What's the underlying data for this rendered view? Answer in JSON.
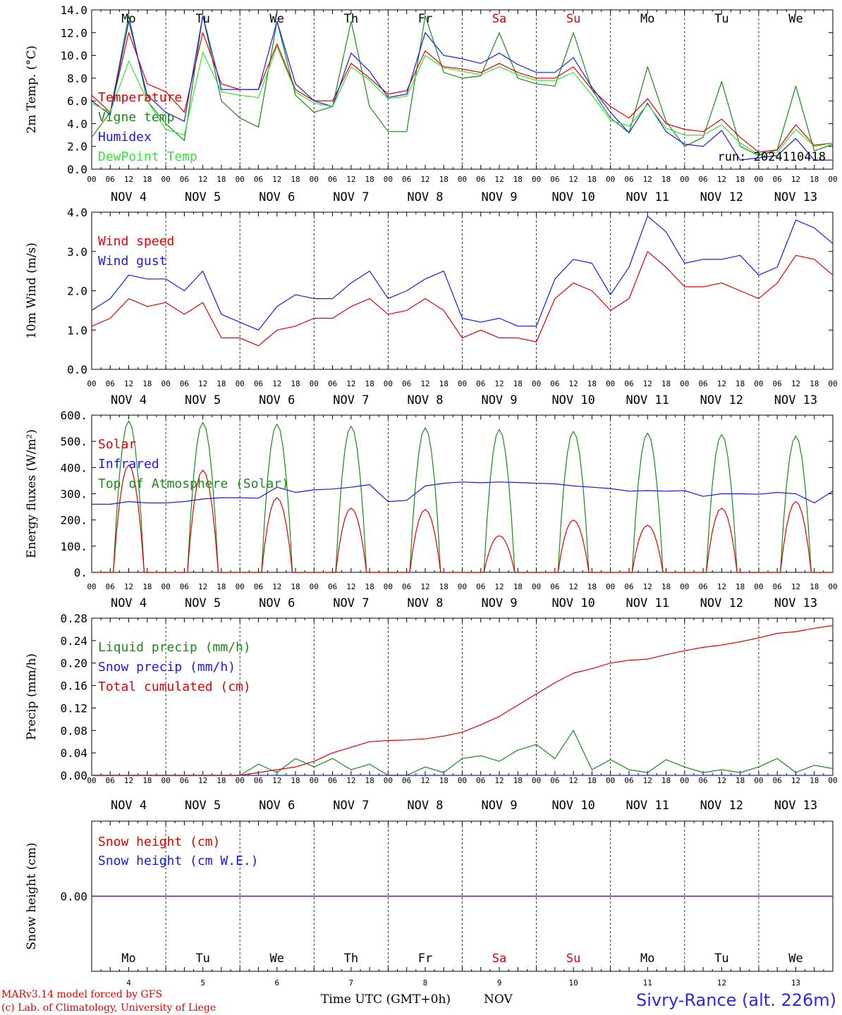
{
  "run_label": "run: 2024110418",
  "station": "Sivry-Rance (alt. 226m)",
  "footnote_line1": "MARv3.14 model forced by GFS",
  "footnote_line2": "(c) Lab. of Climatology, University of Liege",
  "x_axis_title": "Time UTC (GMT+0h)",
  "x_axis_unit": "NOV",
  "hour_labels": [
    "00",
    "06",
    "12",
    "18"
  ],
  "days": [
    {
      "name": "Mo",
      "month": "NOV",
      "date": "4",
      "weekend": false
    },
    {
      "name": "Tu",
      "month": "NOV",
      "date": "5",
      "weekend": false
    },
    {
      "name": "We",
      "month": "NOV",
      "date": "6",
      "weekend": false
    },
    {
      "name": "Th",
      "month": "NOV",
      "date": "7",
      "weekend": false
    },
    {
      "name": "Fr",
      "month": "NOV",
      "date": "8",
      "weekend": false
    },
    {
      "name": "Sa",
      "month": "NOV",
      "date": "9",
      "weekend": true
    },
    {
      "name": "Su",
      "month": "NOV",
      "date": "10",
      "weekend": true
    },
    {
      "name": "Mo",
      "month": "NOV",
      "date": "11",
      "weekend": false
    },
    {
      "name": "Tu",
      "month": "NOV",
      "date": "12",
      "weekend": false
    },
    {
      "name": "We",
      "month": "NOV",
      "date": "13",
      "weekend": false
    }
  ],
  "colors": {
    "red": "#e00000",
    "blue": "#1a1ae6",
    "green": "#1a8a1a",
    "lightgreen": "#33e633",
    "purple": "#7a2aa0",
    "weekend_day": "#e00000"
  },
  "chart_data": [
    {
      "type": "line",
      "panel": "temperature",
      "ylabel": "2m Temp. (°C)",
      "ylim": [
        0,
        14
      ],
      "yticks": [
        "0.0",
        "2.0",
        "4.0",
        "6.0",
        "8.0",
        "10.0",
        "12.0",
        "14.0"
      ],
      "ytick_values": [
        0,
        2,
        4,
        6,
        8,
        10,
        12,
        14
      ],
      "show_day_names_top": true,
      "show_run_label": true,
      "zero_line_dashed": true,
      "x_unit": "hours since NOV 4 00 UTC",
      "series": [
        {
          "name": "Vigne temp",
          "color": "green",
          "x": [
            0,
            6,
            12,
            18,
            24,
            30,
            36,
            42,
            48,
            54,
            60,
            66,
            72,
            78,
            84,
            90,
            96,
            102,
            108,
            114,
            120,
            126,
            132,
            138,
            144,
            150,
            156,
            162,
            168,
            174,
            180,
            186,
            192,
            198,
            204,
            210,
            216,
            222,
            228,
            234,
            240
          ],
          "y": [
            2.8,
            5,
            13.5,
            6,
            4,
            2.5,
            13.5,
            6,
            4.5,
            3.7,
            13,
            6.5,
            5,
            5.5,
            13,
            5.5,
            3.3,
            3.3,
            13.5,
            8.5,
            8,
            8.2,
            12,
            8,
            7.5,
            7.3,
            12,
            7,
            4.5,
            3.2,
            9,
            4.2,
            2,
            2.8,
            7.7,
            2,
            1.2,
            1.7,
            7.3,
            1.6,
            2.2
          ]
        },
        {
          "name": "Temperature",
          "color": "red",
          "x": [
            0,
            6,
            12,
            18,
            24,
            30,
            36,
            42,
            48,
            54,
            60,
            66,
            72,
            78,
            84,
            90,
            96,
            102,
            108,
            114,
            120,
            126,
            132,
            138,
            144,
            150,
            156,
            162,
            168,
            174,
            180,
            186,
            192,
            198,
            204,
            210,
            216,
            222,
            228,
            234,
            240
          ],
          "y": [
            6.5,
            5,
            12,
            7.5,
            6.8,
            5,
            12,
            7.5,
            7,
            7,
            11,
            7,
            6,
            6,
            9.3,
            8,
            6.6,
            6.9,
            10.4,
            9,
            8.8,
            8.5,
            9.3,
            8.5,
            8,
            8,
            9,
            7,
            5.5,
            4.5,
            6.2,
            4,
            3.5,
            3.3,
            4.4,
            2.8,
            1.5,
            1.7,
            3.9,
            2.1,
            2.3
          ]
        },
        {
          "name": "Humidex",
          "color": "blue",
          "x": [
            0,
            6,
            12,
            18,
            24,
            30,
            36,
            42,
            48,
            54,
            60,
            66,
            72,
            78,
            84,
            90,
            96,
            102,
            108,
            114,
            120,
            126,
            132,
            138,
            144,
            150,
            156,
            162,
            168,
            174,
            180,
            186,
            192,
            198,
            204,
            210,
            216,
            222,
            228,
            234,
            240
          ],
          "y": [
            6,
            4.8,
            13,
            6.5,
            5,
            4.2,
            13.5,
            7,
            7,
            7,
            13,
            7.5,
            6,
            5.5,
            10.2,
            8.6,
            6.3,
            6.6,
            12,
            10,
            9.7,
            9.3,
            10.2,
            9.2,
            8.5,
            8.5,
            9.8,
            7.2,
            5,
            3.2,
            5.8,
            3.3,
            2.2,
            2,
            3.4,
            0.8,
            1,
            1.2,
            2.7,
            0.8,
            0.8
          ]
        },
        {
          "name": "DewPoint Temp",
          "color": "lightgreen",
          "x": [
            0,
            6,
            12,
            18,
            24,
            30,
            36,
            42,
            48,
            54,
            60,
            66,
            72,
            78,
            84,
            90,
            96,
            102,
            108,
            114,
            120,
            126,
            132,
            138,
            144,
            150,
            156,
            162,
            168,
            174,
            180,
            186,
            192,
            198,
            204,
            210,
            216,
            222,
            228,
            234,
            240
          ],
          "y": [
            5.8,
            5,
            9.5,
            6,
            3.5,
            3,
            10.3,
            6.8,
            6.5,
            6.3,
            10.8,
            6.8,
            5.8,
            5.5,
            9,
            7.8,
            6.2,
            6.4,
            10,
            8.9,
            8.6,
            8.3,
            9,
            8.3,
            7.8,
            7.8,
            8.5,
            6.5,
            4.3,
            3.8,
            5.7,
            3.6,
            3,
            3,
            3.9,
            2.3,
            1.3,
            1.5,
            3.5,
            2,
            2.3
          ]
        }
      ]
    },
    {
      "type": "line",
      "panel": "wind",
      "ylabel": "10m Wind (m/s)",
      "ylim": [
        0,
        4
      ],
      "yticks": [
        "0.0",
        "1.0",
        "2.0",
        "3.0",
        "4.0"
      ],
      "ytick_values": [
        0,
        1,
        2,
        3,
        4
      ],
      "x_unit": "hours since NOV 4 00 UTC",
      "series": [
        {
          "name": "Wind speed",
          "color": "red",
          "x": [
            0,
            6,
            12,
            18,
            24,
            30,
            36,
            42,
            48,
            54,
            60,
            66,
            72,
            78,
            84,
            90,
            96,
            102,
            108,
            114,
            120,
            126,
            132,
            138,
            144,
            150,
            156,
            162,
            168,
            174,
            180,
            186,
            192,
            198,
            204,
            210,
            216,
            222,
            228,
            234,
            240
          ],
          "y": [
            1.1,
            1.3,
            1.8,
            1.6,
            1.7,
            1.4,
            1.7,
            0.8,
            0.8,
            0.6,
            1,
            1.1,
            1.3,
            1.3,
            1.6,
            1.8,
            1.4,
            1.5,
            1.8,
            1.5,
            0.8,
            1,
            0.8,
            0.8,
            0.7,
            1.8,
            2.2,
            2,
            1.5,
            1.8,
            3,
            2.6,
            2.1,
            2.1,
            2.2,
            2,
            1.8,
            2.2,
            2.9,
            2.8,
            2.4
          ]
        },
        {
          "name": "Wind gust",
          "color": "blue",
          "x": [
            0,
            6,
            12,
            18,
            24,
            30,
            36,
            42,
            48,
            54,
            60,
            66,
            72,
            78,
            84,
            90,
            96,
            102,
            108,
            114,
            120,
            126,
            132,
            138,
            144,
            150,
            156,
            162,
            168,
            174,
            180,
            186,
            192,
            198,
            204,
            210,
            216,
            222,
            228,
            234,
            240
          ],
          "y": [
            1.5,
            1.8,
            2.4,
            2.3,
            2.3,
            2,
            2.5,
            1.4,
            1.2,
            1,
            1.6,
            1.9,
            1.8,
            1.8,
            2.2,
            2.5,
            1.8,
            2,
            2.3,
            2.5,
            1.3,
            1.2,
            1.3,
            1.1,
            1.1,
            2.3,
            2.8,
            2.7,
            1.9,
            2.6,
            3.9,
            3.5,
            2.7,
            2.8,
            2.8,
            2.9,
            2.4,
            2.6,
            3.8,
            3.6,
            3.2
          ]
        }
      ]
    },
    {
      "type": "line",
      "panel": "energy",
      "ylabel": "Energy fluxes (W/m²)",
      "ylim": [
        0,
        600
      ],
      "yticks": [
        "0.",
        "100.",
        "200.",
        "300.",
        "400.",
        "500.",
        "600."
      ],
      "ytick_values": [
        0,
        100,
        200,
        300,
        400,
        500,
        600
      ],
      "x_unit": "hours since NOV 4 00 UTC",
      "daily_peak_hour": 13,
      "series": [
        {
          "name": "Top of Atmosphere (Solar)",
          "color": "green",
          "daily_shape": "bell",
          "day_start_hour": 7,
          "day_end_hour": 17,
          "daily_peaks": [
            578,
            572,
            566,
            558,
            552,
            545,
            538,
            532,
            526,
            520
          ]
        },
        {
          "name": "Solar",
          "color": "red",
          "daily_shape": "bell",
          "day_start_hour": 7,
          "day_end_hour": 17,
          "daily_peaks": [
            410,
            390,
            285,
            245,
            240,
            140,
            200,
            180,
            245,
            270
          ]
        },
        {
          "name": "Infrared",
          "color": "blue",
          "x": [
            0,
            6,
            12,
            18,
            24,
            30,
            36,
            42,
            48,
            54,
            60,
            66,
            72,
            78,
            84,
            90,
            96,
            102,
            108,
            114,
            120,
            126,
            132,
            138,
            144,
            150,
            156,
            162,
            168,
            174,
            180,
            186,
            192,
            198,
            204,
            210,
            216,
            222,
            228,
            234,
            240
          ],
          "y": [
            260,
            260,
            270,
            265,
            265,
            270,
            280,
            285,
            285,
            283,
            325,
            305,
            315,
            318,
            325,
            335,
            270,
            275,
            330,
            340,
            345,
            342,
            345,
            343,
            340,
            338,
            330,
            325,
            320,
            310,
            312,
            310,
            312,
            290,
            300,
            300,
            298,
            305,
            300,
            265,
            310
          ]
        }
      ]
    },
    {
      "type": "line",
      "panel": "precip",
      "ylabel": "Precip (mm/h)",
      "ylim": [
        0,
        0.28
      ],
      "yticks": [
        "0.00",
        "0.04",
        "0.08",
        "0.12",
        "0.16",
        "0.20",
        "0.24",
        "0.28"
      ],
      "ytick_values": [
        0,
        0.04,
        0.08,
        0.12,
        0.16,
        0.2,
        0.24,
        0.28
      ],
      "x_unit": "hours since NOV 4 00 UTC",
      "series": [
        {
          "name": "Liquid precip (mm/h)",
          "color": "green",
          "x": [
            0,
            6,
            12,
            18,
            24,
            30,
            36,
            42,
            48,
            54,
            60,
            66,
            72,
            78,
            84,
            90,
            96,
            102,
            108,
            114,
            120,
            126,
            132,
            138,
            144,
            150,
            156,
            162,
            168,
            174,
            180,
            186,
            192,
            198,
            204,
            210,
            216,
            222,
            228,
            234,
            240
          ],
          "y": [
            0,
            0,
            0,
            0,
            0,
            0,
            0,
            0,
            0,
            0.02,
            0.005,
            0.03,
            0.015,
            0.03,
            0.01,
            0.02,
            0,
            0,
            0.015,
            0.005,
            0.03,
            0.035,
            0.025,
            0.045,
            0.055,
            0.03,
            0.08,
            0.01,
            0.028,
            0.01,
            0.005,
            0.028,
            0.015,
            0.005,
            0.01,
            0.005,
            0.015,
            0.03,
            0.005,
            0.018,
            0.012
          ]
        },
        {
          "name": "Snow precip (mm/h)",
          "color": "blue",
          "x": [
            0,
            240
          ],
          "y": [
            0,
            0
          ]
        },
        {
          "name": "Total cumulated (cm)",
          "color": "red",
          "x": [
            0,
            6,
            12,
            18,
            24,
            30,
            36,
            42,
            48,
            54,
            60,
            66,
            72,
            78,
            84,
            90,
            96,
            102,
            108,
            114,
            120,
            126,
            132,
            138,
            144,
            150,
            156,
            162,
            168,
            174,
            180,
            186,
            192,
            198,
            204,
            210,
            216,
            222,
            228,
            234,
            240
          ],
          "y": [
            0,
            0,
            0,
            0,
            0,
            0,
            0,
            0,
            0,
            0.005,
            0.01,
            0.015,
            0.025,
            0.04,
            0.05,
            0.06,
            0.062,
            0.063,
            0.065,
            0.07,
            0.077,
            0.09,
            0.105,
            0.125,
            0.145,
            0.165,
            0.182,
            0.19,
            0.2,
            0.205,
            0.207,
            0.215,
            0.222,
            0.228,
            0.232,
            0.238,
            0.245,
            0.253,
            0.256,
            0.262,
            0.267
          ]
        }
      ]
    },
    {
      "type": "line",
      "panel": "snow",
      "ylabel": "Snow height (cm)",
      "ylim": [
        -1,
        1
      ],
      "yticks": [
        "0.00"
      ],
      "ytick_values": [
        0
      ],
      "show_day_names_bottom": true,
      "x_unit": "hours since NOV 4 00 UTC",
      "series": [
        {
          "name": "Snow height (cm)",
          "color": "red",
          "x": [
            0,
            240
          ],
          "y": [
            0,
            0
          ]
        },
        {
          "name": "Snow height (cm W.E.)",
          "color": "blue",
          "x": [
            0,
            240
          ],
          "y": [
            0,
            0
          ]
        }
      ]
    }
  ]
}
